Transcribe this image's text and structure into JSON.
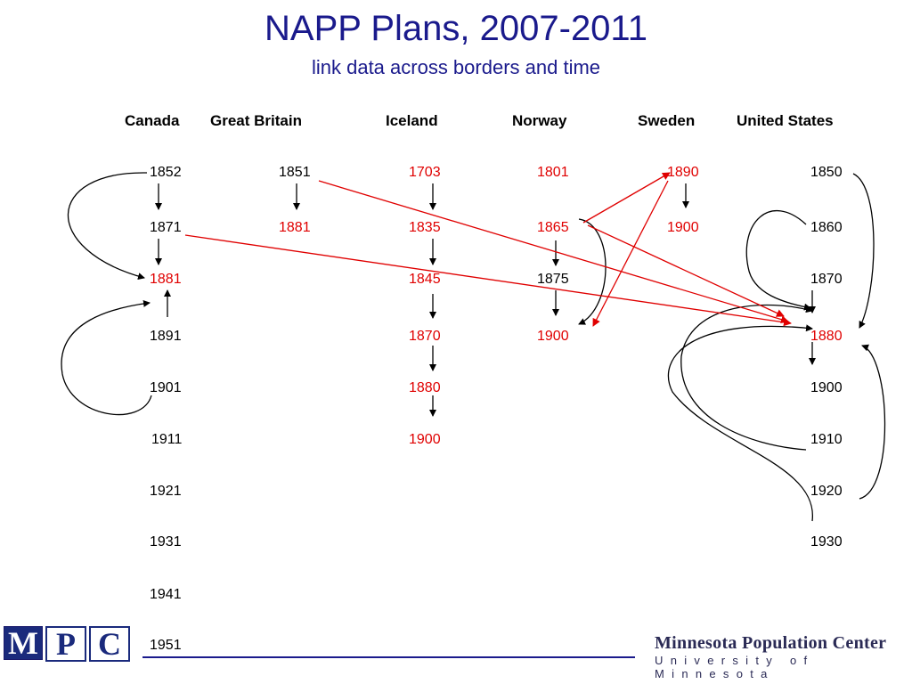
{
  "title": "NAPP Plans, 2007-2011",
  "subtitle": "link data across borders and time",
  "colors": {
    "title": "#1a1a8c",
    "linked_year": "#e00000",
    "plain_year": "#000000",
    "cross_link": "#e00000"
  },
  "countries": [
    {
      "name": "Canada",
      "years": [
        {
          "label": "1852",
          "red": false
        },
        {
          "label": "1871",
          "red": false
        },
        {
          "label": "1881",
          "red": true
        },
        {
          "label": "1891",
          "red": false
        },
        {
          "label": "1901",
          "red": false
        },
        {
          "label": "1911",
          "red": false
        },
        {
          "label": "1921",
          "red": false
        },
        {
          "label": "1931",
          "red": false
        },
        {
          "label": "1941",
          "red": false
        },
        {
          "label": "1951",
          "red": false
        }
      ]
    },
    {
      "name": "Great Britain",
      "years": [
        {
          "label": "1851",
          "red": false
        },
        {
          "label": "1881",
          "red": true
        }
      ]
    },
    {
      "name": "Iceland",
      "years": [
        {
          "label": "1703",
          "red": true
        },
        {
          "label": "1835",
          "red": true
        },
        {
          "label": "1845",
          "red": true
        },
        {
          "label": "1870",
          "red": true
        },
        {
          "label": "1880",
          "red": true
        },
        {
          "label": "1900",
          "red": true
        }
      ]
    },
    {
      "name": "Norway",
      "years": [
        {
          "label": "1801",
          "red": true
        },
        {
          "label": "1865",
          "red": true
        },
        {
          "label": "1875",
          "red": false
        },
        {
          "label": "1900",
          "red": true
        }
      ]
    },
    {
      "name": "Sweden",
      "years": [
        {
          "label": "1890",
          "red": true
        },
        {
          "label": "1900",
          "red": true
        }
      ]
    },
    {
      "name": "United States",
      "years": [
        {
          "label": "1850",
          "red": false
        },
        {
          "label": "1860",
          "red": false
        },
        {
          "label": "1870",
          "red": false
        },
        {
          "label": "1880",
          "red": true
        },
        {
          "label": "1900",
          "red": false
        },
        {
          "label": "1910",
          "red": false
        },
        {
          "label": "1920",
          "red": false
        },
        {
          "label": "1930",
          "red": false
        }
      ]
    }
  ],
  "links": [
    {
      "from": "Great Britain 1851",
      "to": "United States 1880"
    },
    {
      "from": "Canada 1871",
      "to": "United States 1880"
    },
    {
      "from": "Norway 1865",
      "to": "United States 1880"
    },
    {
      "from": "Norway 1865",
      "to": "Sweden 1890"
    },
    {
      "from": "Sweden 1890",
      "to": "Norway 1900"
    }
  ],
  "logo": {
    "letters": [
      "M",
      "P",
      "C"
    ]
  },
  "org": {
    "name": "Minnesota Population Center",
    "sub": "University of Minnesota"
  }
}
